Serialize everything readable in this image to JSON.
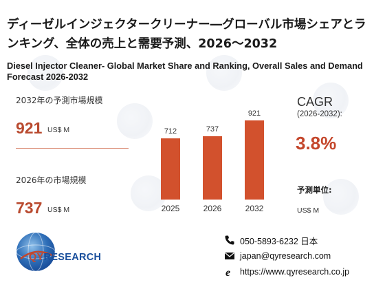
{
  "title_jp": "ディーゼルインジェクタークリーナー―グローバル市場シェアとランキング、全体の売上と需要予測、2026～2032",
  "title_en": "Diesel Injector Cleaner- Global Market Share and Ranking, Overall Sales and Demand Forecast 2026-2032",
  "left_panel": {
    "forecast_label": "2032年の予測市場規模",
    "forecast_value": "921",
    "forecast_unit": "US$ M",
    "current_label": "2026年の市場規模",
    "current_value": "737",
    "current_unit": "US$ M"
  },
  "chart_data": {
    "type": "bar",
    "categories": [
      "2025",
      "2026",
      "2032"
    ],
    "values": [
      712,
      737,
      921
    ],
    "data_labels": [
      "712",
      "737",
      "921"
    ],
    "title": "",
    "xlabel": "",
    "ylabel": "",
    "grid": false,
    "bar_color": "#d2512d"
  },
  "right_panel": {
    "cagr_label": "CAGR",
    "cagr_range": "(2026-2032):",
    "cagr_value": "3.8%",
    "forecast_unit_label": "予測単位:",
    "forecast_unit": "US$ M"
  },
  "footer": {
    "logo_text": "QYRESEARCH",
    "logo_colors": {
      "qy": "#c4462b",
      "research": "#1a4f9c"
    },
    "phone": "050-5893-6232 日本",
    "email": "japan@qyresearch.com",
    "website": "https://www.qyresearch.co.jp"
  },
  "icons": {
    "phone": "phone-icon",
    "email": "email-icon",
    "web": "web-icon"
  }
}
